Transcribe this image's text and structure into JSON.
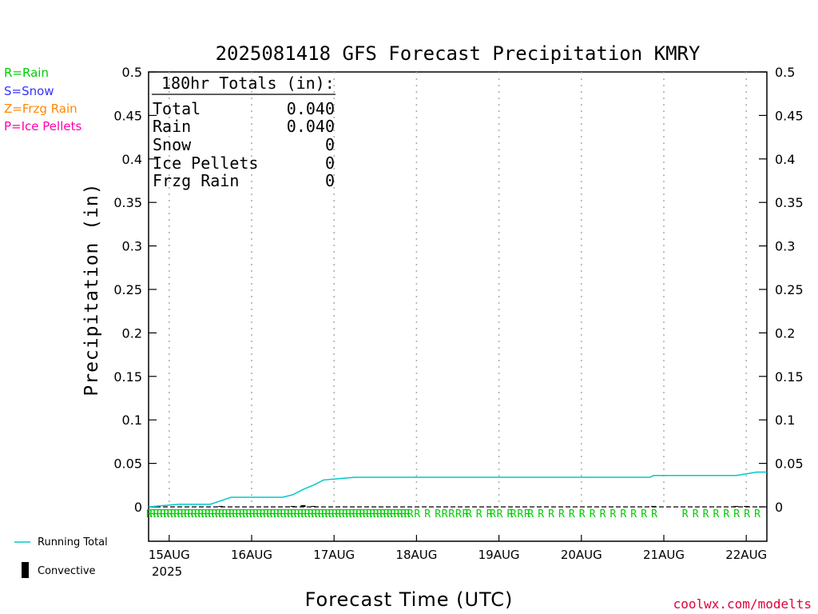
{
  "title": "2025081418 GFS Forecast Precipitation KMRY",
  "ylabel": "Precipitation (in)",
  "xlabel": "Forecast Time (UTC)",
  "credit": "coolwx.com/modelts",
  "type_legend": [
    {
      "text": "R=Rain",
      "color": "#00cc00"
    },
    {
      "text": "S=Snow",
      "color": "#3333ff"
    },
    {
      "text": "Z=Frzg Rain",
      "color": "#ff8800"
    },
    {
      "text": "P=Ice Pellets",
      "color": "#ff00aa"
    }
  ],
  "series_legend": {
    "running_total": "Running Total",
    "convective": "Convective"
  },
  "totals": {
    "header": "180hr Totals (in):",
    "rows": [
      {
        "label": "Total",
        "value": "0.040"
      },
      {
        "label": "Rain",
        "value": "0.040"
      },
      {
        "label": "Snow",
        "value": "0"
      },
      {
        "label": "Ice Pellets",
        "value": "0"
      },
      {
        "label": "Frzg Rain",
        "value": "0"
      }
    ]
  },
  "chart_data": {
    "type": "line",
    "title": "2025081418 GFS Forecast Precipitation KMRY",
    "xlabel": "Forecast Time (UTC)",
    "ylabel": "Precipitation (in)",
    "ylim": [
      0,
      0.5
    ],
    "y_ticks": [
      0,
      0.05,
      0.1,
      0.15,
      0.2,
      0.25,
      0.3,
      0.35,
      0.4,
      0.45,
      0.5
    ],
    "y_tick_labels": [
      "0",
      "0.05",
      "0.1",
      "0.15",
      "0.2",
      "0.25",
      "0.3",
      "0.35",
      "0.4",
      "0.45",
      "0.5"
    ],
    "x_tick_labels": [
      "15AUG",
      "16AUG",
      "17AUG",
      "18AUG",
      "19AUG",
      "20AUG",
      "21AUG",
      "22AUG"
    ],
    "x_tick_sublabel": "2025",
    "grid": "vertical dotted at day boundaries",
    "x_units": "forecast hour",
    "xlim": [
      0,
      180
    ],
    "day_tick_hours": [
      6,
      30,
      54,
      78,
      102,
      126,
      150,
      174
    ],
    "series": [
      {
        "name": "Running Total",
        "color": "#00c8c8",
        "x": [
          0,
          3,
          6,
          9,
          12,
          15,
          18,
          21,
          24,
          27,
          30,
          33,
          36,
          39,
          42,
          45,
          48,
          51,
          54,
          57,
          60,
          66,
          72,
          78,
          84,
          90,
          96,
          102,
          108,
          114,
          120,
          126,
          132,
          138,
          144,
          146,
          147,
          150,
          156,
          162,
          168,
          171,
          174,
          177,
          180
        ],
        "values": [
          0,
          0.001,
          0.002,
          0.003,
          0.003,
          0.003,
          0.003,
          0.007,
          0.011,
          0.011,
          0.011,
          0.011,
          0.011,
          0.011,
          0.014,
          0.02,
          0.025,
          0.031,
          0.032,
          0.033,
          0.034,
          0.034,
          0.034,
          0.034,
          0.034,
          0.034,
          0.034,
          0.034,
          0.034,
          0.034,
          0.034,
          0.034,
          0.034,
          0.034,
          0.034,
          0.034,
          0.036,
          0.036,
          0.036,
          0.036,
          0.036,
          0.036,
          0.038,
          0.04,
          0.04
        ]
      },
      {
        "name": "Convective",
        "color": "#000000",
        "x": [
          21,
          42,
          45,
          48,
          147,
          171,
          174
        ],
        "values": [
          0.001,
          0.001,
          0.002,
          0.001,
          0.001,
          0.001,
          0.001
        ]
      }
    ],
    "precip_type_hours": [
      0,
      1,
      2,
      3,
      4,
      5,
      6,
      7,
      8,
      9,
      10,
      11,
      12,
      13,
      14,
      15,
      16,
      17,
      18,
      19,
      20,
      21,
      22,
      23,
      24,
      25,
      26,
      27,
      28,
      29,
      30,
      31,
      32,
      33,
      34,
      35,
      36,
      37,
      38,
      39,
      40,
      41,
      42,
      43,
      44,
      45,
      46,
      47,
      48,
      49,
      50,
      51,
      52,
      53,
      54,
      55,
      56,
      57,
      58,
      59,
      60,
      61,
      62,
      63,
      64,
      65,
      66,
      67,
      68,
      69,
      70,
      71,
      72,
      73,
      74,
      75,
      76,
      78,
      81,
      84,
      86,
      88,
      90,
      92,
      93,
      96,
      99,
      100,
      102,
      105,
      106,
      108,
      110,
      111,
      114,
      117,
      120,
      123,
      126,
      129,
      132,
      135,
      138,
      141,
      144,
      147,
      156,
      159,
      162,
      165,
      168,
      171,
      174,
      177
    ],
    "precip_type_symbol": "R"
  }
}
